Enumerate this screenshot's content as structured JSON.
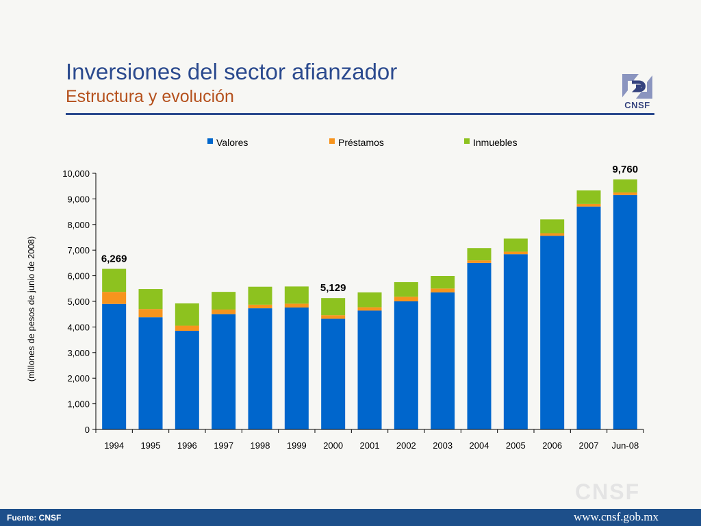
{
  "header": {
    "title": "Inversiones del sector afianzador",
    "subtitle": "Estructura y evolución",
    "logo_text": "CNSF"
  },
  "watermark": "CNSF",
  "footer": {
    "source": "Fuente: CNSF",
    "url": "www.cnsf.gob.mx"
  },
  "colors": {
    "title": "#2b4a8e",
    "subtitle": "#b5511d",
    "valores": "#0066cc",
    "prestamos": "#f7941d",
    "inmuebles": "#8dc21f",
    "footer": "#1d4f8a"
  },
  "chart_data": {
    "type": "bar",
    "stacked": true,
    "categories": [
      "1994",
      "1995",
      "1996",
      "1997",
      "1998",
      "1999",
      "2000",
      "2001",
      "2002",
      "2003",
      "2004",
      "2005",
      "2006",
      "2007",
      "Jun-08"
    ],
    "series": [
      {
        "name": "Valores",
        "color": "#0066cc",
        "values": [
          4900,
          4380,
          3850,
          4500,
          4730,
          4760,
          4320,
          4640,
          5000,
          5350,
          6500,
          6840,
          7560,
          8700,
          9150
        ]
      },
      {
        "name": "Préstamos",
        "color": "#f7941d",
        "values": [
          470,
          320,
          200,
          180,
          140,
          150,
          140,
          130,
          180,
          150,
          100,
          100,
          100,
          100,
          100
        ]
      },
      {
        "name": "Inmuebles",
        "color": "#8dc21f",
        "values": [
          899,
          780,
          870,
          690,
          700,
          670,
          669,
          580,
          570,
          490,
          480,
          510,
          540,
          530,
          510
        ]
      }
    ],
    "data_labels": [
      {
        "category": "1994",
        "text": "6,269"
      },
      {
        "category": "2000",
        "text": "5,129"
      },
      {
        "category": "Jun-08",
        "text": "9,760"
      }
    ],
    "ylabel": "(millones de pesos de junio de 2008)",
    "xlabel": "",
    "ylim": [
      0,
      10000
    ],
    "yticks": [
      "0",
      "1,000",
      "2,000",
      "3,000",
      "4,000",
      "5,000",
      "6,000",
      "7,000",
      "8,000",
      "9,000",
      "10,000"
    ],
    "legend_position": "top",
    "grid": false
  }
}
